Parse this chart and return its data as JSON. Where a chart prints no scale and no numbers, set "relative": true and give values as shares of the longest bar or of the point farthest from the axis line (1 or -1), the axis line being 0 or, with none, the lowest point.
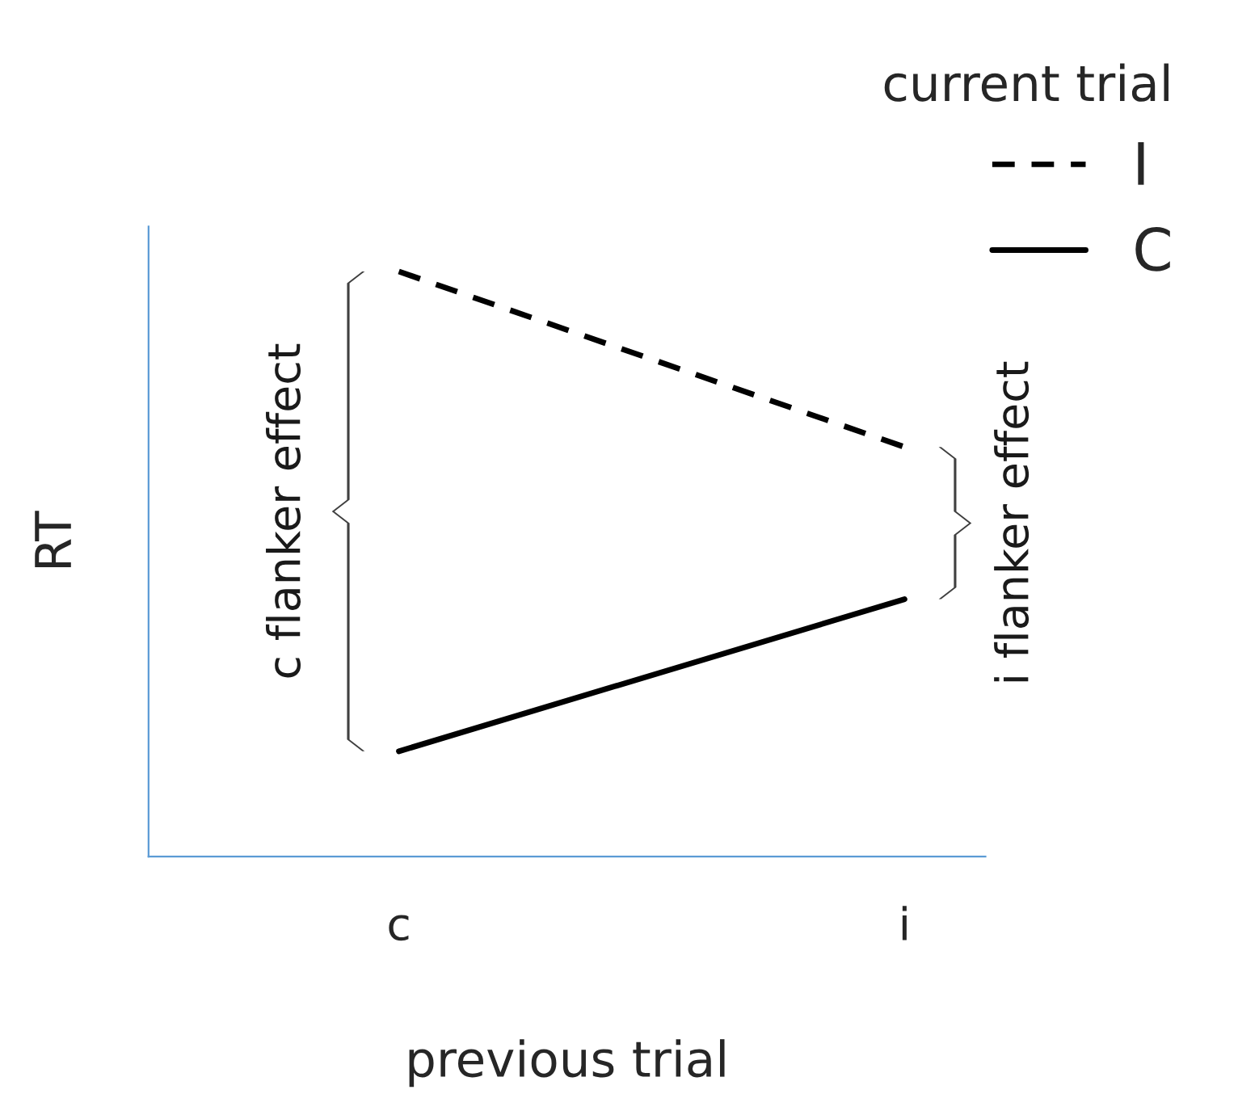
{
  "chart_data": {
    "type": "line",
    "relative": true,
    "xlabel": "previous trial",
    "ylabel": "RT",
    "legend_title": "current trial",
    "legend": "top right",
    "grid": false,
    "categories": [
      "c",
      "i"
    ],
    "series": [
      {
        "name": "I",
        "color": "#000000",
        "line_style": "dashed",
        "values": [
          1,
          0.7
        ]
      },
      {
        "name": "C",
        "color": "#000000",
        "line_style": "solid",
        "values": [
          0.18,
          0.44
        ]
      }
    ],
    "annotations": [
      "c flanker effect",
      "i flanker effect"
    ]
  }
}
